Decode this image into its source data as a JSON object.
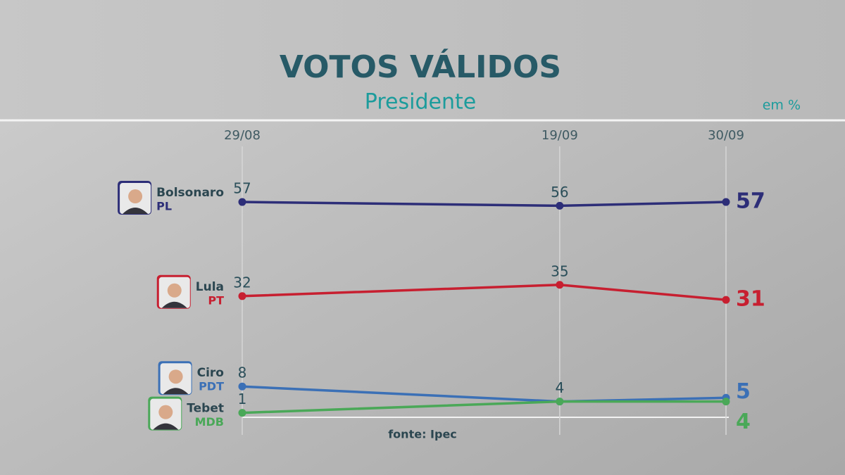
{
  "chart_data": {
    "type": "line",
    "title": "VOTOS VÁLIDOS",
    "subtitle": "Presidente",
    "unit_label": "em %",
    "source": "fonte: Ipec",
    "x": [
      "29/08",
      "19/09",
      "30/09"
    ],
    "ylim": [
      0,
      60
    ],
    "series": [
      {
        "name": "Bolsonaro",
        "party": "PL",
        "color": "#2d2e78",
        "values": [
          57,
          56,
          57
        ]
      },
      {
        "name": "Lula",
        "party": "PT",
        "color": "#c71f30",
        "values": [
          32,
          35,
          31
        ]
      },
      {
        "name": "Ciro",
        "party": "PDT",
        "color": "#3b70b6",
        "values": [
          8,
          4,
          5
        ]
      },
      {
        "name": "Tebet",
        "party": "MDB",
        "color": "#4aa858",
        "values": [
          1,
          4,
          4
        ]
      }
    ]
  }
}
